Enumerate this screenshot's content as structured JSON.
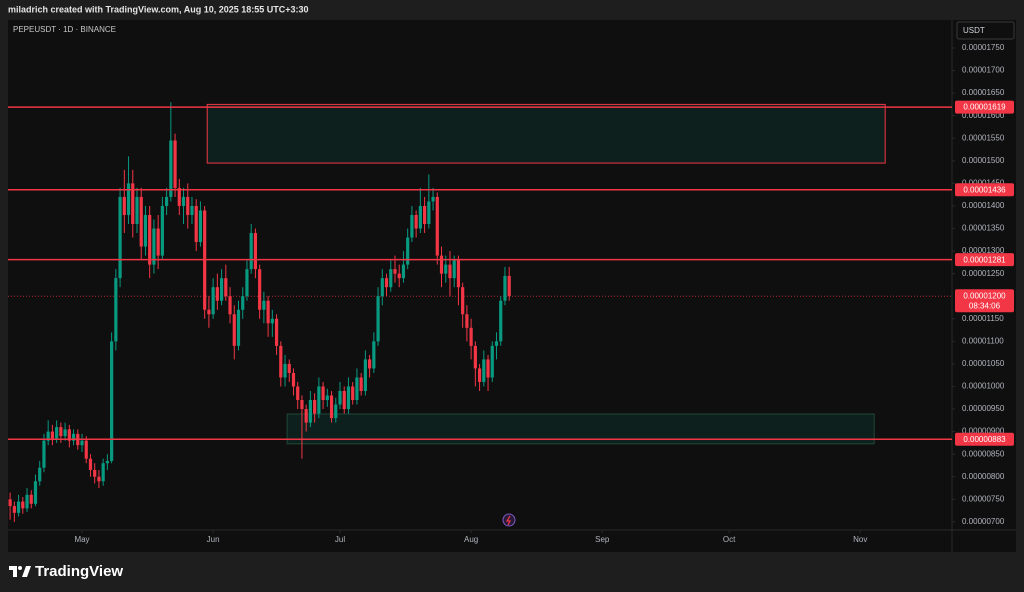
{
  "chart_data": {
    "type": "candlestick",
    "header": "miladrich created with TradingView.com, Aug 10, 2025 18:55 UTC+3:30",
    "title": "PEPEUSDT · 1D · BINANCE",
    "currency": "USDT",
    "brand": "TradingView",
    "up_color": "#089981",
    "down_color": "#f23645",
    "level_color": "#f23645",
    "ohlc": [
      [
        7.5e-06,
        7.65e-06,
        7.05e-06,
        7.35e-06
      ],
      [
        7.35e-06,
        7.45e-06,
        7e-06,
        7.2e-06
      ],
      [
        7.2e-06,
        7.6e-06,
        7.12e-06,
        7.45e-06
      ],
      [
        7.45e-06,
        7.55e-06,
        7.18e-06,
        7.3e-06
      ],
      [
        7.3e-06,
        7.75e-06,
        7.22e-06,
        7.6e-06
      ],
      [
        7.6e-06,
        7.7e-06,
        7.3e-06,
        7.4e-06
      ],
      [
        7.4e-06,
        8.05e-06,
        7.35e-06,
        7.9e-06
      ],
      [
        7.9e-06,
        8.35e-06,
        7.8e-06,
        8.2e-06
      ],
      [
        8.2e-06,
        8.95e-06,
        8.1e-06,
        8.8e-06
      ],
      [
        8.8e-06,
        9.25e-06,
        8.7e-06,
        9e-06
      ],
      [
        9e-06,
        9.15e-06,
        8.7e-06,
        8.85e-06
      ],
      [
        8.85e-06,
        9.25e-06,
        8.75e-06,
        9.1e-06
      ],
      [
        9.1e-06,
        9.2e-06,
        8.75e-06,
        8.9e-06
      ],
      [
        8.9e-06,
        9.2e-06,
        8.8e-06,
        9.05e-06
      ],
      [
        9.05e-06,
        9.15e-06,
        8.65e-06,
        8.8e-06
      ],
      [
        8.8e-06,
        9.05e-06,
        8.7e-06,
        8.95e-06
      ],
      [
        8.95e-06,
        9.05e-06,
        8.6e-06,
        8.7e-06
      ],
      [
        8.7e-06,
        8.95e-06,
        8.55e-06,
        8.8e-06
      ],
      [
        8.8e-06,
        8.9e-06,
        8.3e-06,
        8.4e-06
      ],
      [
        8.4e-06,
        8.5e-06,
        8e-06,
        8.15e-06
      ],
      [
        8.15e-06,
        8.3e-06,
        7.85e-06,
        8e-06
      ],
      [
        8e-06,
        8.15e-06,
        7.75e-06,
        7.9e-06
      ],
      [
        7.9e-06,
        8.4e-06,
        7.8e-06,
        8.3e-06
      ],
      [
        8.3e-06,
        8.5e-06,
        8.15e-06,
        8.35e-06
      ],
      [
        8.35e-06,
        1.12e-05,
        8.3e-06,
        1.1e-05
      ],
      [
        1.1e-05,
        1.26e-05,
        1.08e-05,
        1.24e-05
      ],
      [
        1.24e-05,
        1.44e-05,
        1.22e-05,
        1.42e-05
      ],
      [
        1.42e-05,
        1.48e-05,
        1.34e-05,
        1.38e-05
      ],
      [
        1.38e-05,
        1.51e-05,
        1.36e-05,
        1.45e-05
      ],
      [
        1.45e-05,
        1.48e-05,
        1.33e-05,
        1.36e-05
      ],
      [
        1.36e-05,
        1.44e-05,
        1.34e-05,
        1.42e-05
      ],
      [
        1.42e-05,
        1.44e-05,
        1.28e-05,
        1.31e-05
      ],
      [
        1.31e-05,
        1.4e-05,
        1.29e-05,
        1.38e-05
      ],
      [
        1.38e-05,
        1.4e-05,
        1.24e-05,
        1.27e-05
      ],
      [
        1.27e-05,
        1.37e-05,
        1.25e-05,
        1.35e-05
      ],
      [
        1.35e-05,
        1.38e-05,
        1.26e-05,
        1.29e-05
      ],
      [
        1.29e-05,
        1.42e-05,
        1.28e-05,
        1.4e-05
      ],
      [
        1.4e-05,
        1.44e-05,
        1.38e-05,
        1.42e-05
      ],
      [
        1.42e-05,
        1.63e-05,
        1.41e-05,
        1.545e-05
      ],
      [
        1.545e-05,
        1.56e-05,
        1.42e-05,
        1.44e-05
      ],
      [
        1.44e-05,
        1.46e-05,
        1.38e-05,
        1.4e-05
      ],
      [
        1.4e-05,
        1.44e-05,
        1.36e-05,
        1.42e-05
      ],
      [
        1.42e-05,
        1.45e-05,
        1.35e-05,
        1.38e-05
      ],
      [
        1.38e-05,
        1.42e-05,
        1.36e-05,
        1.4e-05
      ],
      [
        1.4e-05,
        1.415e-05,
        1.3e-05,
        1.32e-05
      ],
      [
        1.32e-05,
        1.41e-05,
        1.31e-05,
        1.39e-05
      ],
      [
        1.39e-05,
        1.4e-05,
        1.15e-05,
        1.17e-05
      ],
      [
        1.17e-05,
        1.2e-05,
        1.13e-05,
        1.16e-05
      ],
      [
        1.16e-05,
        1.24e-05,
        1.15e-05,
        1.22e-05
      ],
      [
        1.22e-05,
        1.25e-05,
        1.17e-05,
        1.19e-05
      ],
      [
        1.19e-05,
        1.26e-05,
        1.18e-05,
        1.24e-05
      ],
      [
        1.24e-05,
        1.27e-05,
        1.19e-05,
        1.2e-05
      ],
      [
        1.2e-05,
        1.22e-05,
        1.14e-05,
        1.16e-05
      ],
      [
        1.16e-05,
        1.18e-05,
        1.06e-05,
        1.09e-05
      ],
      [
        1.09e-05,
        1.19e-05,
        1.08e-05,
        1.17e-05
      ],
      [
        1.17e-05,
        1.22e-05,
        1.15e-05,
        1.2e-05
      ],
      [
        1.2e-05,
        1.28e-05,
        1.19e-05,
        1.26e-05
      ],
      [
        1.26e-05,
        1.36e-05,
        1.25e-05,
        1.34e-05
      ],
      [
        1.34e-05,
        1.35e-05,
        1.24e-05,
        1.26e-05
      ],
      [
        1.26e-05,
        1.27e-05,
        1.15e-05,
        1.17e-05
      ],
      [
        1.17e-05,
        1.21e-05,
        1.14e-05,
        1.19e-05
      ],
      [
        1.19e-05,
        1.2e-05,
        1.11e-05,
        1.14e-05
      ],
      [
        1.14e-05,
        1.17e-05,
        1.11e-05,
        1.15e-05
      ],
      [
        1.15e-05,
        1.16e-05,
        1.07e-05,
        1.09e-05
      ],
      [
        1.09e-05,
        1.1e-05,
        1e-05,
        1.02e-05
      ],
      [
        1.02e-05,
        1.07e-05,
        1e-05,
        1.05e-05
      ],
      [
        1.05e-05,
        1.06e-05,
        1.01e-05,
        1.03e-05
      ],
      [
        1.03e-05,
        1.04e-05,
        9.8e-06,
        1e-05
      ],
      [
        1e-05,
        1.01e-05,
        9.5e-06,
        9.7e-06
      ],
      [
        9.7e-06,
        9.8e-06,
        8.4e-06,
        9.5e-06
      ],
      [
        9.5e-06,
        9.6e-06,
        9e-06,
        9.2e-06
      ],
      [
        9.2e-06,
        9.9e-06,
        9.1e-06,
        9.7e-06
      ],
      [
        9.7e-06,
        9.85e-06,
        9.2e-06,
        9.4e-06
      ],
      [
        9.4e-06,
        1.02e-05,
        9.3e-06,
        1e-05
      ],
      [
        1e-05,
        1.01e-05,
        9.5e-06,
        9.7e-06
      ],
      [
        9.7e-06,
        9.95e-06,
        9.55e-06,
        9.8e-06
      ],
      [
        9.8e-06,
        9.9e-06,
        9.2e-06,
        9.3e-06
      ],
      [
        9.3e-06,
        9.75e-06,
        9.2e-06,
        9.6e-06
      ],
      [
        9.6e-06,
        1.01e-05,
        9.5e-06,
        9.9e-06
      ],
      [
        9.9e-06,
        1e-05,
        9.4e-06,
        9.5e-06
      ],
      [
        9.5e-06,
        1.02e-05,
        9.4e-06,
        1e-05
      ],
      [
        1e-05,
        1.01e-05,
        9.6e-06,
        9.7e-06
      ],
      [
        9.7e-06,
        1.04e-05,
        9.6e-06,
        1.02e-05
      ],
      [
        1.02e-05,
        1.03e-05,
        9.8e-06,
        9.9e-06
      ],
      [
        9.9e-06,
        1.08e-05,
        9.8e-06,
        1.06e-05
      ],
      [
        1.06e-05,
        1.07e-05,
        1.02e-05,
        1.04e-05
      ],
      [
        1.04e-05,
        1.12e-05,
        1.03e-05,
        1.1e-05
      ],
      [
        1.1e-05,
        1.22e-05,
        1.09e-05,
        1.2e-05
      ],
      [
        1.2e-05,
        1.26e-05,
        1.18e-05,
        1.24e-05
      ],
      [
        1.24e-05,
        1.25e-05,
        1.2e-05,
        1.22e-05
      ],
      [
        1.22e-05,
        1.28e-05,
        1.21e-05,
        1.26e-05
      ],
      [
        1.26e-05,
        1.29e-05,
        1.23e-05,
        1.25e-05
      ],
      [
        1.25e-05,
        1.27e-05,
        1.22e-05,
        1.24e-05
      ],
      [
        1.24e-05,
        1.3e-05,
        1.23e-05,
        1.27e-05
      ],
      [
        1.27e-05,
        1.35e-05,
        1.26e-05,
        1.33e-05
      ],
      [
        1.33e-05,
        1.4e-05,
        1.32e-05,
        1.38e-05
      ],
      [
        1.38e-05,
        1.39e-05,
        1.33e-05,
        1.35e-05
      ],
      [
        1.35e-05,
        1.44e-05,
        1.34e-05,
        1.4e-05
      ],
      [
        1.4e-05,
        1.42e-05,
        1.34e-05,
        1.36e-05
      ],
      [
        1.36e-05,
        1.47e-05,
        1.35e-05,
        1.41e-05
      ],
      [
        1.41e-05,
        1.44e-05,
        1.39e-05,
        1.42e-05
      ],
      [
        1.42e-05,
        1.43e-05,
        1.27e-05,
        1.29e-05
      ],
      [
        1.29e-05,
        1.31e-05,
        1.22e-05,
        1.25e-05
      ],
      [
        1.25e-05,
        1.29e-05,
        1.23e-05,
        1.27e-05
      ],
      [
        1.27e-05,
        1.3e-05,
        1.2e-05,
        1.24e-05
      ],
      [
        1.24e-05,
        1.29e-05,
        1.22e-05,
        1.28e-05
      ],
      [
        1.28e-05,
        1.29e-05,
        1.18e-05,
        1.22e-05
      ],
      [
        1.22e-05,
        1.23e-05,
        1.13e-05,
        1.16e-05
      ],
      [
        1.16e-05,
        1.18e-05,
        1.1e-05,
        1.13e-05
      ],
      [
        1.13e-05,
        1.15e-05,
        1.06e-05,
        1.09e-05
      ],
      [
        1.09e-05,
        1.1e-05,
        1e-05,
        1.04e-05
      ],
      [
        1.04e-05,
        1.05e-05,
        9.9e-06,
        1.01e-05
      ],
      [
        1.01e-05,
        1.08e-05,
        1e-05,
        1.06e-05
      ],
      [
        1.06e-05,
        1.07e-05,
        9.9e-06,
        1.02e-05
      ],
      [
        1.02e-05,
        1.1e-05,
        1.01e-05,
        1.09e-05
      ],
      [
        1.09e-05,
        1.12e-05,
        1.06e-05,
        1.1e-05
      ],
      [
        1.1e-05,
        1.2e-05,
        1.09e-05,
        1.19e-05
      ],
      [
        1.19e-05,
        1.265e-05,
        1.18e-05,
        1.245e-05
      ],
      [
        1.245e-05,
        1.265e-05,
        1.19e-05,
        1.2e-05
      ]
    ],
    "xlim": [
      -0.5,
      222.7
    ],
    "xticks": [
      {
        "value": 17,
        "label": "May"
      },
      {
        "value": 48,
        "label": "Jun"
      },
      {
        "value": 78,
        "label": "Jul"
      },
      {
        "value": 109,
        "label": "Aug"
      },
      {
        "value": 140,
        "label": "Sep"
      },
      {
        "value": 170,
        "label": "Oct"
      },
      {
        "value": 201,
        "label": "Nov"
      }
    ],
    "ylim": [
      6.82e-06,
      1.812e-05
    ],
    "yticks": [
      {
        "value": 1.75e-05,
        "label": "0.00001750"
      },
      {
        "value": 1.7e-05,
        "label": "0.00001700"
      },
      {
        "value": 1.65e-05,
        "label": "0.00001650"
      },
      {
        "value": 1.6e-05,
        "label": "0.00001600"
      },
      {
        "value": 1.55e-05,
        "label": "0.00001550"
      },
      {
        "value": 1.5e-05,
        "label": "0.00001500"
      },
      {
        "value": 1.45e-05,
        "label": "0.00001450"
      },
      {
        "value": 1.4e-05,
        "label": "0.00001400"
      },
      {
        "value": 1.35e-05,
        "label": "0.00001350"
      },
      {
        "value": 1.3e-05,
        "label": "0.00001300"
      },
      {
        "value": 1.25e-05,
        "label": "0.00001250"
      },
      {
        "value": 1.15e-05,
        "label": "0.00001150"
      },
      {
        "value": 1.1e-05,
        "label": "0.00001100"
      },
      {
        "value": 1.05e-05,
        "label": "0.00001050"
      },
      {
        "value": 1e-05,
        "label": "0.00001000"
      },
      {
        "value": 9.5e-06,
        "label": "0.00000950"
      },
      {
        "value": 9e-06,
        "label": "0.00000900"
      },
      {
        "value": 8.5e-06,
        "label": "0.00000850"
      },
      {
        "value": 8e-06,
        "label": "0.00000800"
      },
      {
        "value": 7.5e-06,
        "label": "0.00000750"
      },
      {
        "value": 7e-06,
        "label": "0.00000700"
      }
    ],
    "levels": [
      1.619e-05,
      1.436e-05,
      1.281e-05,
      8.83e-06
    ],
    "zones": [
      {
        "start": 46.6,
        "end": 206.9,
        "top": 1.625e-05,
        "bottom": 1.495e-05,
        "border": "#f23645"
      },
      {
        "start": 65.5,
        "end": 204.3,
        "top": 9.39e-06,
        "bottom": 8.73e-06,
        "border": "#1f4a36"
      }
    ],
    "last_price": {
      "value": 1.2e-05,
      "label": "0.00001200"
    },
    "countdown": "08:34:06"
  }
}
